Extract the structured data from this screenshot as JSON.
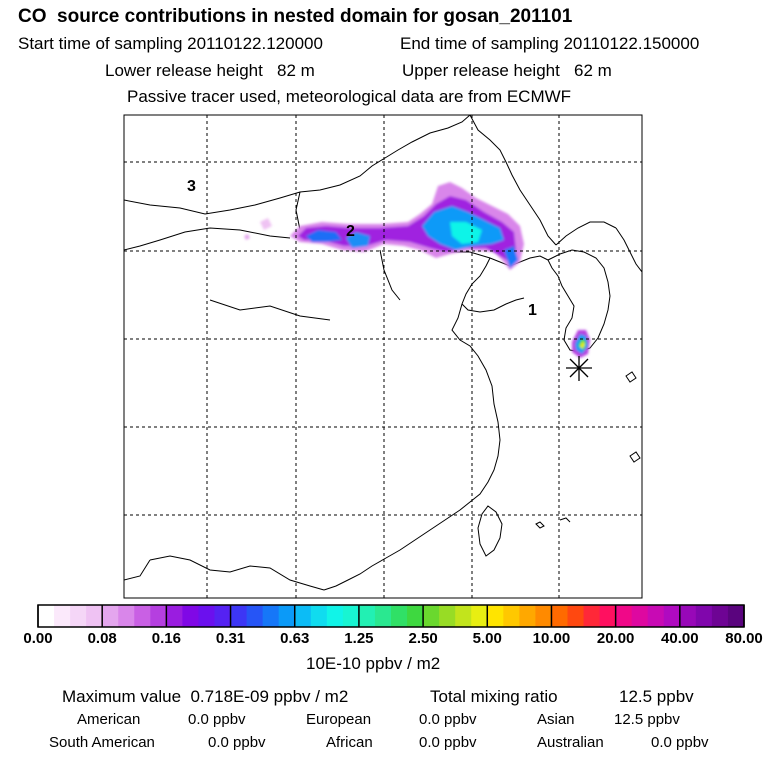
{
  "header": {
    "title": "CO  source contributions in nested domain for gosan_201101",
    "start_label": "Start time of sampling 20110122.120000",
    "end_label": "End time of sampling 20110122.150000",
    "lower_label": "Lower release height   82 m",
    "upper_label": "Upper release height   62 m",
    "note": "Passive tracer used, meteorological data are from ECMWF"
  },
  "map": {
    "region_labels": [
      "1",
      "2",
      "3"
    ]
  },
  "colorbar": {
    "ticks": [
      "0.00",
      "0.08",
      "0.16",
      "0.31",
      "0.63",
      "1.25",
      "2.50",
      "5.00",
      "10.00",
      "20.00",
      "40.00",
      "80.00"
    ],
    "unit": "10E-10 ppbv / m2",
    "colors": [
      "#ffffff",
      "#fbe9fb",
      "#f5d6f7",
      "#efc2f3",
      "#e4a6ee",
      "#d986ea",
      "#c960e4",
      "#b53fe0",
      "#9a1de0",
      "#8008e6",
      "#6b10ee",
      "#5522f2",
      "#3d36f5",
      "#2655f6",
      "#1677f8",
      "#0b9af8",
      "#0cbcf6",
      "#10dcef",
      "#11f4e8",
      "#18f5d2",
      "#22f0b3",
      "#2ae890",
      "#30e066",
      "#3ed840",
      "#6ad82e",
      "#98dc25",
      "#c2e41c",
      "#e8ee12",
      "#ffe400",
      "#ffc800",
      "#ffa800",
      "#ff8a00",
      "#ff6a00",
      "#ff4810",
      "#ff2838",
      "#ff1060",
      "#f00888",
      "#de08a0",
      "#c80ab4",
      "#b00ac0",
      "#9808b8",
      "#8006ac",
      "#6e0494",
      "#5a047e"
    ]
  },
  "footer": {
    "max_label": "Maximum value  0.718E-09 ppbv / m2",
    "total_label": "Total mixing ratio",
    "total_value": "12.5 ppbv",
    "regions": [
      {
        "name": "American",
        "value": "0.0 ppbv"
      },
      {
        "name": "European",
        "value": "0.0 ppbv"
      },
      {
        "name": "Asian",
        "value": "12.5 ppbv"
      },
      {
        "name": "South American",
        "value": "0.0 ppbv"
      },
      {
        "name": "African",
        "value": "0.0 ppbv"
      },
      {
        "name": "Australian",
        "value": "0.0 ppbv"
      }
    ]
  }
}
